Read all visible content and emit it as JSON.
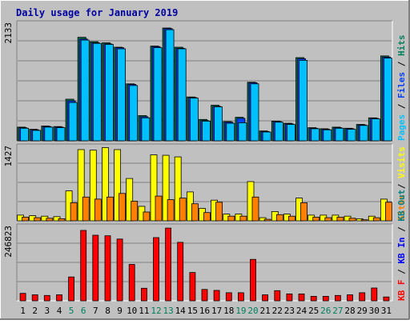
{
  "title": "Daily usage for January 2019",
  "colors": {
    "background": "#c0c0c0",
    "title": "#0000a0",
    "hits": "#00805c",
    "files": "#0040ff",
    "pages": "#00c0ff",
    "visits": "#ffff00",
    "sites": "#ff8000",
    "kbin": "#0000ff",
    "kbout": "#008080",
    "kbf": "#ff0000",
    "weekend_day": "#00805c",
    "weekday": "#000000"
  },
  "chart_data": [
    {
      "type": "bar",
      "panel": "top",
      "max_label": "2133",
      "ylim": [
        0,
        2133
      ],
      "legend": [
        "Pages",
        "Files",
        "Hits"
      ],
      "legend_separator": "/",
      "categories": [
        "1",
        "2",
        "3",
        "4",
        "5",
        "6",
        "7",
        "8",
        "9",
        "10",
        "11",
        "12",
        "13",
        "14",
        "15",
        "16",
        "17",
        "18",
        "19",
        "20",
        "21",
        "22",
        "23",
        "24",
        "25",
        "26",
        "27",
        "28",
        "29",
        "30",
        "31"
      ],
      "series": [
        {
          "name": "Hits",
          "values": [
            250,
            210,
            270,
            260,
            760,
            1890,
            1810,
            1790,
            1710,
            1040,
            460,
            1730,
            2060,
            1710,
            800,
            390,
            650,
            350,
            430,
            1070,
            180,
            360,
            320,
            1520,
            240,
            220,
            250,
            230,
            300,
            420,
            1550
          ]
        },
        {
          "name": "Files",
          "values": [
            240,
            200,
            260,
            250,
            730,
            1860,
            1790,
            1770,
            1700,
            1030,
            440,
            1720,
            2050,
            1690,
            790,
            370,
            630,
            340,
            410,
            1060,
            170,
            350,
            310,
            1500,
            230,
            210,
            240,
            220,
            290,
            410,
            1530
          ]
        },
        {
          "name": "Pages",
          "values": [
            230,
            190,
            250,
            240,
            700,
            1840,
            1780,
            1760,
            1680,
            1010,
            420,
            1700,
            2030,
            1680,
            780,
            360,
            620,
            320,
            330,
            1040,
            160,
            340,
            300,
            1470,
            220,
            200,
            230,
            210,
            280,
            400,
            1510
          ]
        }
      ]
    },
    {
      "type": "bar",
      "panel": "middle",
      "max_label": "1427",
      "ylim": [
        0,
        1427
      ],
      "legend": [
        "Sites",
        "Visits"
      ],
      "legend_separator": "/",
      "categories": [
        "1",
        "2",
        "3",
        "4",
        "5",
        "6",
        "7",
        "8",
        "9",
        "10",
        "11",
        "12",
        "13",
        "14",
        "15",
        "16",
        "17",
        "18",
        "19",
        "20",
        "21",
        "22",
        "23",
        "24",
        "25",
        "26",
        "27",
        "28",
        "29",
        "30",
        "31"
      ],
      "series": [
        {
          "name": "Visits",
          "values": [
            110,
            100,
            90,
            80,
            580,
            1380,
            1370,
            1420,
            1380,
            820,
            280,
            1280,
            1270,
            1240,
            560,
            240,
            400,
            130,
            130,
            760,
            60,
            180,
            130,
            440,
            110,
            110,
            110,
            90,
            40,
            90,
            420
          ]
        },
        {
          "name": "Sites",
          "values": [
            70,
            60,
            50,
            40,
            350,
            460,
            420,
            460,
            530,
            380,
            170,
            480,
            410,
            440,
            330,
            160,
            360,
            90,
            90,
            460,
            30,
            120,
            90,
            350,
            70,
            60,
            70,
            50,
            20,
            60,
            360
          ]
        }
      ]
    },
    {
      "type": "bar",
      "panel": "bottom",
      "max_label": "246823",
      "ylim": [
        0,
        246823
      ],
      "legend": [
        "KB F",
        "KB In",
        "KB Out"
      ],
      "legend_separator": "/",
      "categories": [
        "1",
        "2",
        "3",
        "4",
        "5",
        "6",
        "7",
        "8",
        "9",
        "10",
        "11",
        "12",
        "13",
        "14",
        "15",
        "16",
        "17",
        "18",
        "19",
        "20",
        "21",
        "22",
        "23",
        "24",
        "25",
        "26",
        "27",
        "28",
        "29",
        "30",
        "31"
      ],
      "series": [
        {
          "name": "KB F",
          "values": [
            25000,
            20000,
            18000,
            20000,
            80000,
            236000,
            220000,
            218000,
            207000,
            122000,
            42000,
            212000,
            244000,
            196000,
            95000,
            38000,
            35000,
            27000,
            27000,
            139000,
            20000,
            34000,
            23000,
            23000,
            15000,
            15000,
            18000,
            20000,
            27000,
            43000,
            13000
          ]
        }
      ]
    }
  ],
  "x_axis": {
    "labels": [
      "1",
      "2",
      "3",
      "4",
      "5",
      "6",
      "7",
      "8",
      "9",
      "10",
      "11",
      "12",
      "13",
      "14",
      "15",
      "16",
      "17",
      "18",
      "19",
      "20",
      "21",
      "22",
      "23",
      "24",
      "25",
      "26",
      "27",
      "28",
      "29",
      "30",
      "31"
    ],
    "weekend_days": [
      5,
      6,
      12,
      13,
      19,
      20,
      26,
      27
    ]
  }
}
